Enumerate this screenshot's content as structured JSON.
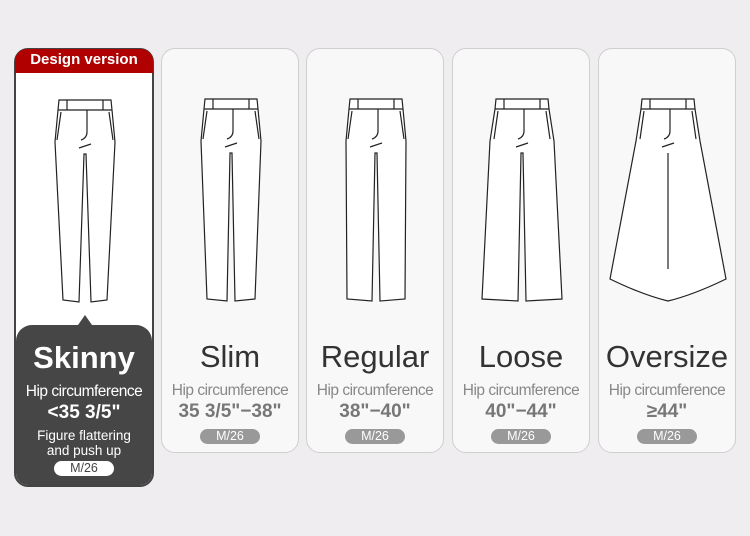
{
  "badge": "Design version",
  "cards": [
    {
      "fit": "Skinny",
      "hip_label": "Hip circumference",
      "range": "<35 3/5\"",
      "description": [
        "Figure flattering",
        "and push up"
      ],
      "size": "M/26",
      "featured": true,
      "hem": 22,
      "gap": 4
    },
    {
      "fit": "Slim",
      "hip_label": "Hip circumference",
      "range": "35 3/5\"−38\"",
      "size": "M/26",
      "hem": 24,
      "gap": 2
    },
    {
      "fit": "Regular",
      "hip_label": "Hip circumference",
      "range": "38\"−40\"",
      "size": "M/26",
      "hem": 29,
      "gap": 2
    },
    {
      "fit": "Loose",
      "hip_label": "Hip circumference",
      "range": "40\"−44\"",
      "size": "M/26",
      "hem": 40,
      "gap": 2
    },
    {
      "fit": "Oversize",
      "hip_label": "Hip circumference",
      "range": "≥44\"",
      "size": "M/26",
      "hem": 58,
      "gap": 0
    }
  ],
  "colors": {
    "accent": "#b00000",
    "dark": "#464646",
    "size_pill": "#999999"
  }
}
